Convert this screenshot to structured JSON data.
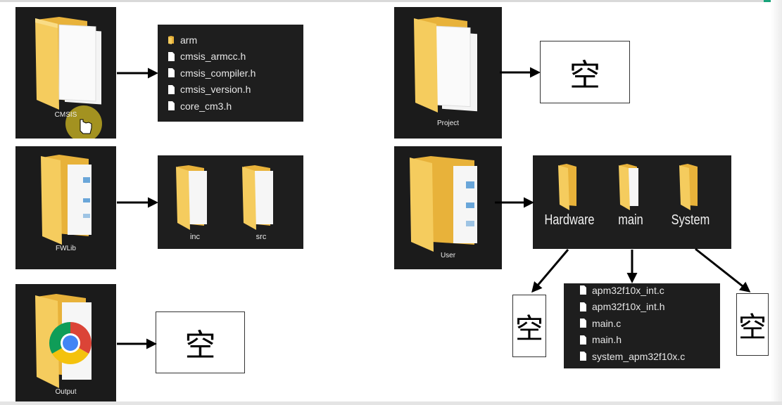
{
  "folders": {
    "cmsis": "CMSIS",
    "fwlib": "FWLib",
    "output": "Output",
    "project": "Project",
    "user": "User"
  },
  "cmsis_contents": [
    "arm",
    "cmsis_armcc.h",
    "cmsis_compiler.h",
    "cmsis_version.h",
    "core_cm3.h"
  ],
  "fwlib_contents": [
    "inc",
    "src"
  ],
  "empty_label": "空",
  "user_contents": [
    "Hardware",
    "main",
    "System"
  ],
  "main_contents": [
    "apm32f10x_int.c",
    "apm32f10x_int.h",
    "main.c",
    "main.h",
    "system_apm32f10x.c"
  ],
  "colors": {
    "tile": "#1b1b1b",
    "folder": "#f5cc5e",
    "folder_back": "#e8b23a",
    "paper": "#f3f3f3",
    "cursor_highlight": "#c9b321"
  }
}
